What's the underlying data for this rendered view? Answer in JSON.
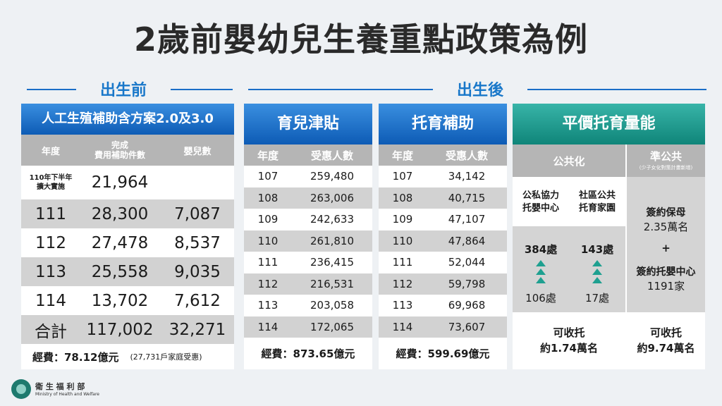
{
  "title": "2歲前嬰幼兒生養重點政策為例",
  "sections": {
    "before": "出生前",
    "after": "出生後"
  },
  "pre": {
    "heading": "人工生殖補助含方案2.0及3.0",
    "headers": {
      "year": "年度",
      "count_l1": "完成",
      "count_l2": "費用補助件數",
      "babies": "嬰兒數"
    },
    "first_row": {
      "year_l1": "110年下半年",
      "year_l2": "擴大實施",
      "count": "21,964",
      "babies": ""
    },
    "rows": [
      {
        "year": "111",
        "count": "28,300",
        "babies": "7,087"
      },
      {
        "year": "112",
        "count": "27,478",
        "babies": "8,537"
      },
      {
        "year": "113",
        "count": "25,558",
        "babies": "9,035"
      },
      {
        "year": "114",
        "count": "13,702",
        "babies": "7,612"
      }
    ],
    "total": {
      "label": "合計",
      "count": "117,002",
      "babies": "32,271"
    },
    "cost": "經費：78.12億元",
    "households": "(27,731戶家庭受惠)"
  },
  "allowance": {
    "heading": "育兒津貼",
    "headers": {
      "year": "年度",
      "value": "受惠人數"
    },
    "rows": [
      {
        "year": "107",
        "value": "259,480"
      },
      {
        "year": "108",
        "value": "263,006"
      },
      {
        "year": "109",
        "value": "242,633"
      },
      {
        "year": "110",
        "value": "261,810"
      },
      {
        "year": "111",
        "value": "236,415"
      },
      {
        "year": "112",
        "value": "216,531"
      },
      {
        "year": "113",
        "value": "203,058"
      },
      {
        "year": "114",
        "value": "172,065"
      }
    ],
    "cost": "經費：873.65億元"
  },
  "childcare": {
    "heading": "托育補助",
    "headers": {
      "year": "年度",
      "value": "受惠人數"
    },
    "rows": [
      {
        "year": "107",
        "value": "34,142"
      },
      {
        "year": "108",
        "value": "40,715"
      },
      {
        "year": "109",
        "value": "47,107"
      },
      {
        "year": "110",
        "value": "47,864"
      },
      {
        "year": "111",
        "value": "52,044"
      },
      {
        "year": "112",
        "value": "59,798"
      },
      {
        "year": "113",
        "value": "69,968"
      },
      {
        "year": "114",
        "value": "73,607"
      }
    ],
    "cost": "經費：599.69億元"
  },
  "capacity": {
    "heading": "平價托育量能",
    "public": "公共化",
    "quasi": "準公共",
    "quasi_note": "(少子女化對策計畫新增)",
    "center_l1": "公私協力",
    "center_l2": "托嬰中心",
    "home_l1": "社區公共",
    "home_l2": "托育家園",
    "center_now": "384處",
    "center_before": "106處",
    "home_now": "143處",
    "home_before": "17處",
    "nanny_l1": "簽約保母",
    "nanny_l2": "2.35萬名",
    "plus": "+",
    "centers_l1": "簽約托嬰中心",
    "centers_l2": "1191家",
    "public_cap_l1": "可收托",
    "public_cap_l2": "約1.74萬名",
    "quasi_cap_l1": "可收托",
    "quasi_cap_l2": "約9.74萬名"
  },
  "footer": {
    "org_cn": "衛 生 福 利 部",
    "org_en": "Ministry of Health and Welfare"
  },
  "colors": {
    "blue": "#1877c9",
    "teal": "#1ea090",
    "header_gray": "#b5b5b5"
  }
}
